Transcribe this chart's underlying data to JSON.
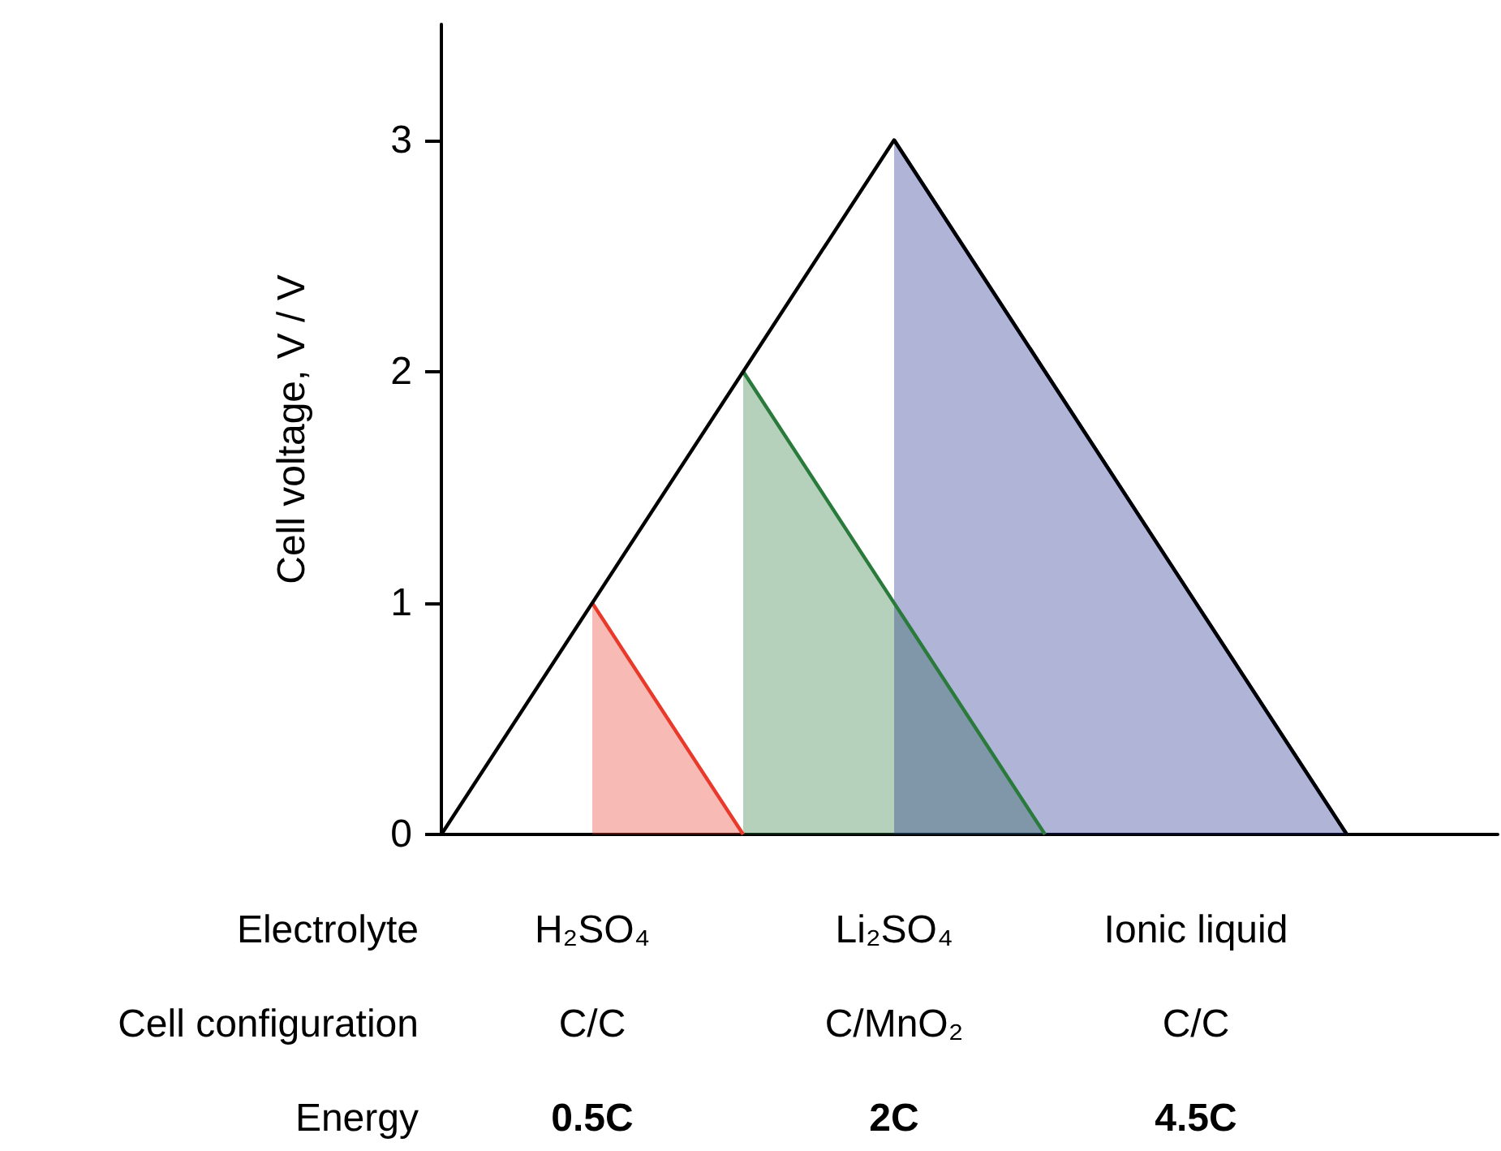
{
  "chart_data": {
    "type": "line",
    "ylabel": "Cell voltage, V / V",
    "categories": [
      null,
      null,
      null,
      null,
      null,
      null,
      null,
      null
    ],
    "ylim": [
      0,
      3.5
    ],
    "yticks": [
      0,
      1,
      2,
      3
    ],
    "grid": false,
    "marker": "none",
    "tick_labels": "y",
    "series": [
      {
        "type": "area",
        "color": "#e8392a",
        "values": [
          null,
          1,
          0,
          null,
          null,
          null,
          null,
          null
        ]
      },
      {
        "type": "area",
        "color": "#2a7a3c",
        "values": [
          null,
          null,
          2,
          1,
          0,
          null,
          null,
          null
        ]
      },
      {
        "type": "area",
        "color": "#1c2a8c",
        "values": [
          null,
          null,
          null,
          3,
          2,
          1,
          0,
          null
        ]
      },
      {
        "type": "line",
        "color": "#000000",
        "values": [
          0,
          1,
          2,
          3,
          2,
          1,
          0,
          null
        ]
      }
    ],
    "annotations": [
      "Electrolyte",
      "H₂SO₄",
      "Li₂SO₄",
      "Ionic liquid",
      "Cell configuration",
      "C/C",
      "C/MnO₂",
      "C/C",
      "Energy",
      "0.5C",
      "2C",
      "4.5C"
    ]
  }
}
